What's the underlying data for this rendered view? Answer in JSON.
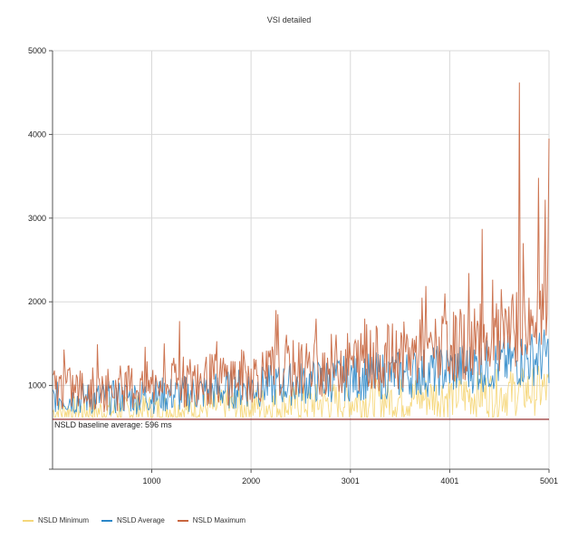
{
  "chart_data": {
    "type": "line",
    "title": "VSI detailed",
    "xlabel": "",
    "ylabel": "",
    "xlim": [
      1,
      5001
    ],
    "ylim": [
      0,
      5000
    ],
    "x_ticks": [
      "1000",
      "2000",
      "3001",
      "4001",
      "5001"
    ],
    "x_tick_values": [
      1000,
      2000,
      3001,
      4001,
      5001
    ],
    "y_ticks": [
      "1000",
      "2000",
      "3000",
      "4000",
      "5000"
    ],
    "y_tick_values": [
      1000,
      2000,
      3000,
      4000,
      5000
    ],
    "grid": true,
    "legend_position": "bottom-left",
    "baseline": {
      "label": "NSLD baseline average: 596 ms",
      "value": 596,
      "color": "#8b1a1a"
    },
    "series": [
      {
        "name": "NSLD Minimum",
        "color": "#f5d77a",
        "points": [
          [
            1,
            680
          ],
          [
            250,
            700
          ],
          [
            500,
            690
          ],
          [
            750,
            700
          ],
          [
            1000,
            710
          ],
          [
            1250,
            720
          ],
          [
            1500,
            730
          ],
          [
            1750,
            740
          ],
          [
            2000,
            760
          ],
          [
            2250,
            770
          ],
          [
            2500,
            780
          ],
          [
            2750,
            800
          ],
          [
            3001,
            820
          ],
          [
            3250,
            830
          ],
          [
            3500,
            840
          ],
          [
            3750,
            860
          ],
          [
            4001,
            880
          ],
          [
            4250,
            890
          ],
          [
            4500,
            910
          ],
          [
            4750,
            930
          ],
          [
            5001,
            950
          ]
        ]
      },
      {
        "name": "NSLD Average",
        "color": "#2b87c8",
        "points": [
          [
            1,
            860
          ],
          [
            250,
            840
          ],
          [
            500,
            850
          ],
          [
            750,
            860
          ],
          [
            1000,
            880
          ],
          [
            1250,
            890
          ],
          [
            1500,
            920
          ],
          [
            1750,
            950
          ],
          [
            2000,
            980
          ],
          [
            2250,
            1000
          ],
          [
            2500,
            1030
          ],
          [
            2750,
            1060
          ],
          [
            3001,
            1090
          ],
          [
            3250,
            1110
          ],
          [
            3500,
            1130
          ],
          [
            3750,
            1160
          ],
          [
            4001,
            1190
          ],
          [
            4250,
            1220
          ],
          [
            4500,
            1250
          ],
          [
            4750,
            1310
          ],
          [
            5001,
            1360
          ]
        ]
      },
      {
        "name": "NSLD Maximum",
        "color": "#c8663f",
        "points": [
          [
            1,
            980
          ],
          [
            250,
            950
          ],
          [
            500,
            960
          ],
          [
            750,
            980
          ],
          [
            1000,
            1000
          ],
          [
            1250,
            1030
          ],
          [
            1500,
            1060
          ],
          [
            1750,
            1090
          ],
          [
            2000,
            1120
          ],
          [
            2250,
            1160
          ],
          [
            2500,
            1200
          ],
          [
            2750,
            1240
          ],
          [
            3001,
            1280
          ],
          [
            3250,
            1320
          ],
          [
            3500,
            1360
          ],
          [
            3750,
            1400
          ],
          [
            4001,
            1450
          ],
          [
            4250,
            1510
          ],
          [
            4500,
            1570
          ],
          [
            4750,
            1700
          ],
          [
            5001,
            1850
          ]
        ],
        "peaks": [
          [
            120,
            1430
          ],
          [
            1280,
            1770
          ],
          [
            2250,
            1900
          ],
          [
            3150,
            1800
          ],
          [
            3720,
            2050
          ],
          [
            3950,
            2100
          ],
          [
            4330,
            2870
          ],
          [
            4520,
            2150
          ],
          [
            4700,
            4620
          ],
          [
            4740,
            2700
          ],
          [
            4900,
            3480
          ],
          [
            4960,
            3220
          ],
          [
            5001,
            3950
          ]
        ]
      }
    ]
  }
}
